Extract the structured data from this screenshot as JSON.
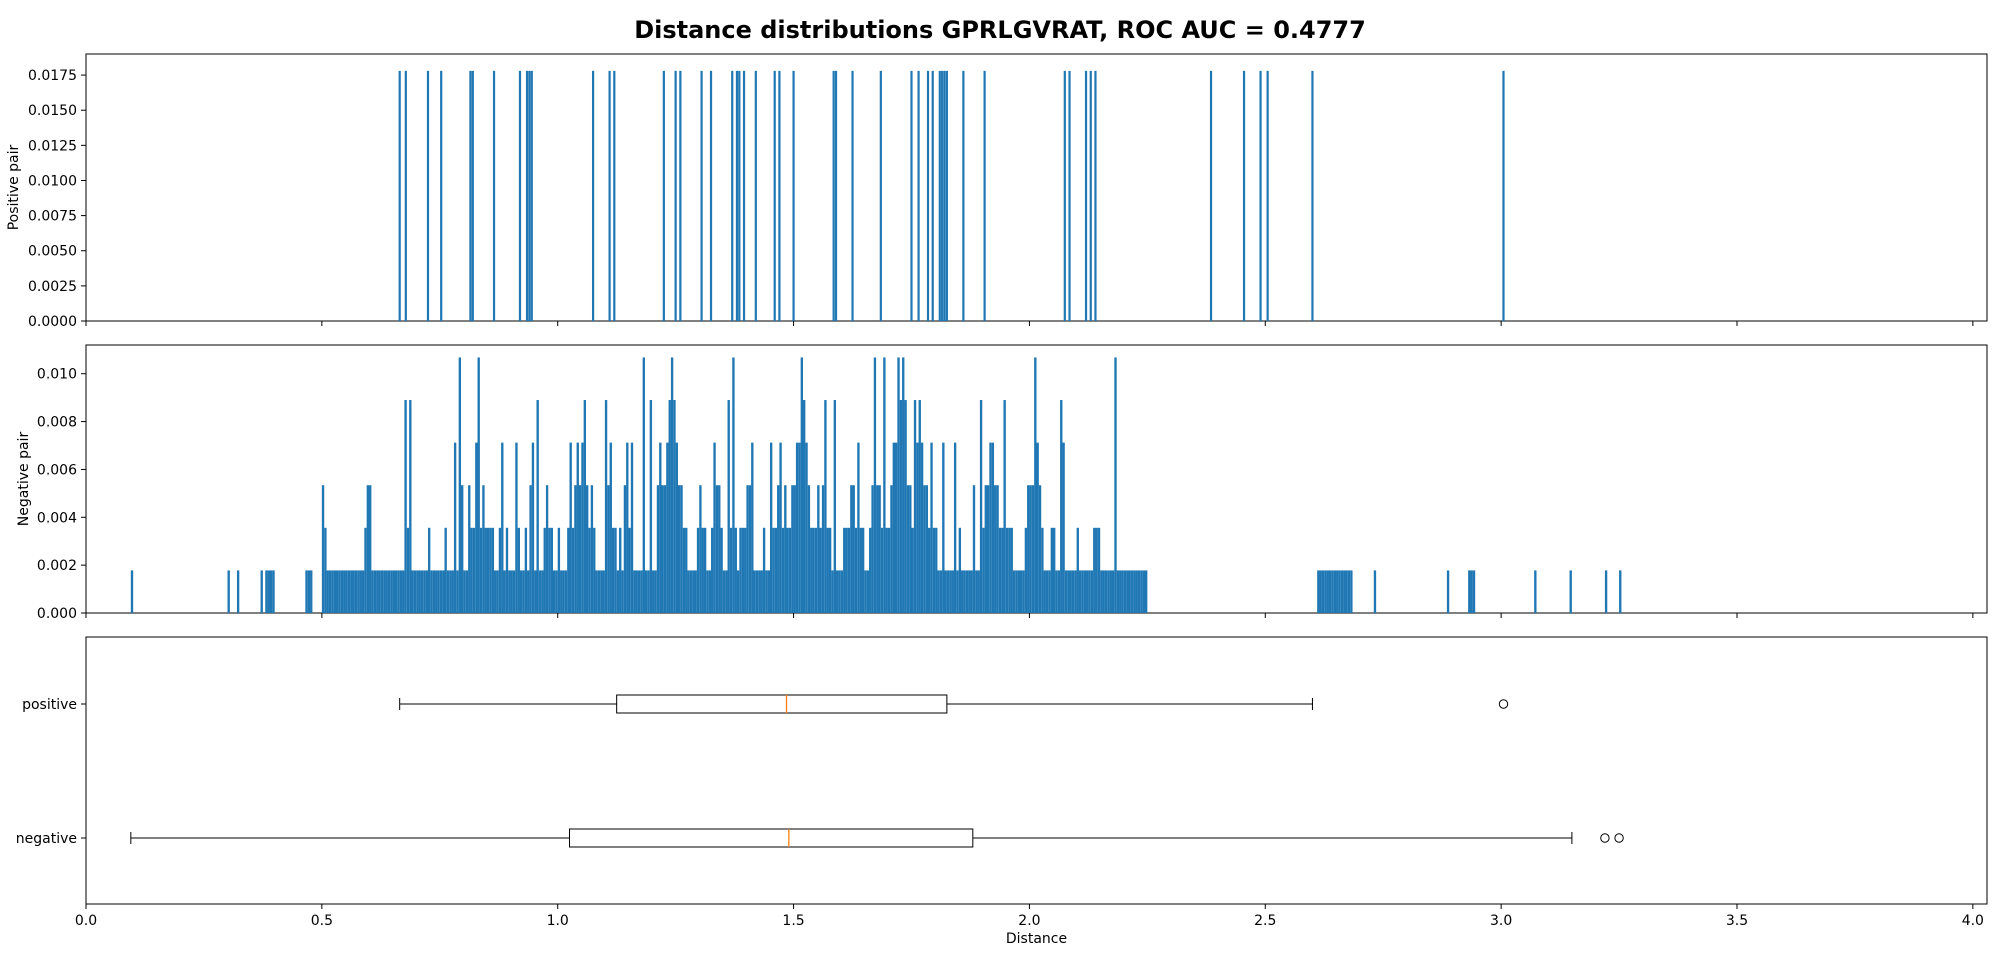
{
  "chart_data": {
    "title": "Distance distributions GPRLGVRAT, ROC AUC = 0.4777",
    "bar_color": "#1f77b4",
    "median_color": "#ff7f0e",
    "x_axis": {
      "label": "Distance",
      "range": [
        0,
        4.03
      ],
      "ticks": [
        0,
        0.5,
        1.0,
        1.5,
        2.0,
        2.5,
        3.0,
        3.5,
        4.0
      ],
      "tick_labels": [
        "0.0",
        "0.5",
        "1.0",
        "1.5",
        "2.0",
        "2.5",
        "3.0",
        "3.5",
        "4.0"
      ]
    },
    "charts": [
      {
        "type": "histogram",
        "ylabel": "Positive pair",
        "ylim": [
          0,
          0.019
        ],
        "yticks": [
          0,
          0.0025,
          0.005,
          0.0075,
          0.01,
          0.0125,
          0.015,
          0.0175
        ],
        "ytick_labels": [
          "0.0000",
          "0.0025",
          "0.0050",
          "0.0075",
          "0.0100",
          "0.0125",
          "0.0150",
          "0.0175"
        ],
        "bar_height": 0.0178,
        "bar_positions": [
          0.665,
          0.678,
          0.725,
          0.753,
          0.815,
          0.82,
          0.865,
          0.92,
          0.935,
          0.94,
          0.945,
          1.075,
          1.11,
          1.12,
          1.225,
          1.25,
          1.26,
          1.305,
          1.325,
          1.37,
          1.38,
          1.385,
          1.395,
          1.42,
          1.46,
          1.47,
          1.5,
          1.585,
          1.59,
          1.625,
          1.685,
          1.75,
          1.765,
          1.785,
          1.795,
          1.81,
          1.815,
          1.82,
          1.825,
          1.86,
          1.905,
          2.075,
          2.085,
          2.12,
          2.13,
          2.14,
          2.385,
          2.455,
          2.49,
          2.505,
          2.6,
          3.005
        ]
      },
      {
        "type": "histogram",
        "ylabel": "Negative pair",
        "ylim": [
          0,
          0.0112
        ],
        "yticks": [
          0,
          0.002,
          0.004,
          0.006,
          0.008,
          0.01
        ],
        "ytick_labels": [
          "0.000",
          "0.002",
          "0.004",
          "0.006",
          "0.008",
          "0.010"
        ],
        "bin_width": 0.005,
        "bin_unit": 0.00178,
        "bins_start": 0.095,
        "bins": [
          {
            "x0": 0.095,
            "h": [
              1
            ]
          },
          {
            "x0": 0.3,
            "h": [
              1,
              0,
              0,
              0,
              1
            ]
          },
          {
            "x0": 0.37,
            "h": [
              1,
              0,
              1,
              1,
              1,
              1
            ]
          },
          {
            "x0": 0.465,
            "h": [
              1,
              1,
              1
            ]
          },
          {
            "x0": 0.5,
            "h": [
              3,
              2,
              1,
              1,
              1,
              1,
              1,
              1,
              1,
              1,
              1,
              1,
              1,
              1,
              1,
              1,
              1,
              1,
              2,
              3,
              3,
              1,
              1,
              1,
              1,
              1,
              1,
              1,
              1,
              1,
              1,
              1,
              1,
              1,
              1,
              1,
              2,
              5,
              1,
              1,
              1,
              1,
              1,
              1,
              1,
              2,
              1,
              1,
              1,
              1,
              1,
              1,
              2,
              1,
              1,
              1,
              1,
              1,
              1,
              3,
              1,
              1,
              3,
              2,
              2,
              4,
              6,
              2,
              3,
              2,
              2,
              2,
              2,
              1,
              1,
              2,
              2,
              1,
              2,
              1,
              1,
              1,
              1,
              2,
              1,
              1,
              2,
              1,
              3,
              4,
              1,
              1,
              1,
              1,
              2,
              3,
              2,
              2,
              1,
              1,
              2,
              1,
              1,
              1,
              2,
              3,
              2,
              3,
              4,
              3,
              3,
              5,
              3,
              2,
              3,
              2,
              1,
              1,
              1,
              1,
              1,
              3,
              4,
              2,
              2,
              1,
              2,
              1,
              3,
              4,
              2,
              2,
              1,
              1,
              1,
              1,
              1,
              1,
              1,
              1,
              1,
              1,
              3,
              4,
              3,
              3,
              4,
              5,
              6,
              5,
              4,
              3,
              3,
              2,
              2,
              1,
              1,
              1,
              1,
              2,
              3,
              2,
              2,
              1,
              1,
              2,
              4,
              3,
              3,
              2,
              1,
              1,
              1,
              2,
              3,
              2,
              1,
              2,
              2,
              2,
              3,
              3,
              2,
              1,
              1,
              1,
              1,
              2,
              1,
              1,
              1,
              2,
              2,
              3,
              4,
              2,
              3,
              2,
              2,
              3,
              3,
              3,
              4,
              6,
              5,
              4,
              3,
              2,
              2,
              2,
              3,
              2,
              3,
              3,
              2,
              2,
              1,
              1,
              1,
              1,
              1,
              2,
              2,
              2,
              3,
              3,
              2,
              3,
              2,
              2,
              1,
              1,
              2,
              3,
              3,
              3,
              3,
              2,
              2,
              2,
              2,
              3,
              4,
              5,
              6,
              5,
              6,
              5,
              3,
              3,
              2,
              3,
              4,
              5,
              4,
              3,
              3,
              2,
              2,
              2,
              2,
              1,
              1,
              1,
              1,
              1,
              1,
              1,
              2,
              1,
              2,
              1,
              1,
              1,
              1,
              1,
              3,
              1,
              1,
              1,
              2,
              3,
              3,
              4,
              4,
              3,
              3,
              2,
              2,
              2,
              2,
              2,
              2,
              1,
              1,
              1,
              1,
              1,
              2,
              3,
              3,
              3,
              6,
              4,
              3,
              2,
              1,
              1,
              1,
              2,
              2,
              1,
              1,
              1,
              1,
              1,
              1,
              1,
              1,
              1,
              2,
              1,
              1,
              1,
              1,
              1,
              1,
              2,
              2,
              2,
              1,
              1,
              1,
              1,
              1,
              1,
              1,
              1,
              1,
              1,
              1,
              1,
              1,
              1,
              1,
              1,
              1,
              1,
              1,
              1
            ]
          },
          {
            "x0": 2.61,
            "h": [
              1,
              1,
              1,
              1,
              1,
              1,
              1,
              1,
              1,
              1,
              1,
              1,
              1,
              1,
              1
            ]
          },
          {
            "x0": 2.73,
            "h": [
              1
            ]
          },
          {
            "x0": 2.885,
            "h": [
              1
            ]
          },
          {
            "x0": 2.93,
            "h": [
              1,
              1,
              1
            ]
          },
          {
            "x0": 3.07,
            "h": [
              1
            ]
          },
          {
            "x0": 3.145,
            "h": [
              1
            ]
          },
          {
            "x0": 3.22,
            "h": [
              1
            ]
          },
          {
            "x0": 3.25,
            "h": [
              1
            ]
          }
        ],
        "peaks": [
          {
            "x": 0.79,
            "h": 6
          },
          {
            "x": 1.18,
            "h": 6
          },
          {
            "x": 1.37,
            "h": 6
          },
          {
            "x": 1.67,
            "h": 6
          },
          {
            "x": 1.69,
            "h": 6
          },
          {
            "x": 2.18,
            "h": 6
          },
          {
            "x": 0.675,
            "h": 5
          },
          {
            "x": 0.955,
            "h": 5
          },
          {
            "x": 1.195,
            "h": 5
          },
          {
            "x": 1.245,
            "h": 5
          },
          {
            "x": 1.36,
            "h": 5
          },
          {
            "x": 1.565,
            "h": 5
          },
          {
            "x": 1.585,
            "h": 5
          },
          {
            "x": 1.755,
            "h": 5
          },
          {
            "x": 1.895,
            "h": 5
          },
          {
            "x": 1.945,
            "h": 5
          },
          {
            "x": 2.065,
            "h": 5
          },
          {
            "x": 1.1,
            "h": 5
          },
          {
            "x": 0.78,
            "h": 4
          },
          {
            "x": 0.88,
            "h": 4
          },
          {
            "x": 0.91,
            "h": 4
          },
          {
            "x": 1.025,
            "h": 4
          },
          {
            "x": 1.05,
            "h": 4
          },
          {
            "x": 1.155,
            "h": 4
          },
          {
            "x": 1.41,
            "h": 4
          },
          {
            "x": 1.45,
            "h": 4
          },
          {
            "x": 1.505,
            "h": 4
          },
          {
            "x": 1.635,
            "h": 4
          },
          {
            "x": 1.715,
            "h": 4
          },
          {
            "x": 1.79,
            "h": 4
          },
          {
            "x": 1.815,
            "h": 4
          },
          {
            "x": 1.84,
            "h": 4
          },
          {
            "x": 2.07,
            "h": 4
          }
        ]
      },
      {
        "type": "boxplot",
        "categories": [
          "positive",
          "negative"
        ],
        "boxes": [
          {
            "name": "positive",
            "whislo": 0.665,
            "q1": 1.125,
            "med": 1.485,
            "q3": 1.825,
            "whishi": 2.6,
            "fliers": [
              3.005
            ]
          },
          {
            "name": "negative",
            "whislo": 0.095,
            "q1": 1.025,
            "med": 1.49,
            "q3": 1.88,
            "whishi": 3.15,
            "fliers": [
              3.22,
              3.25
            ]
          }
        ]
      }
    ]
  }
}
